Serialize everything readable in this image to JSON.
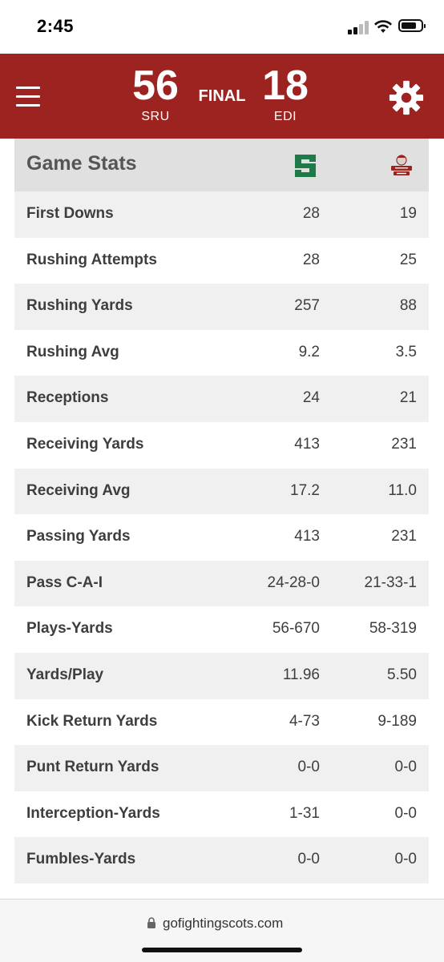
{
  "status_bar": {
    "time": "2:45"
  },
  "header": {
    "home_score": "56",
    "home_abbr": "SRU",
    "status": "FINAL",
    "away_score": "18",
    "away_abbr": "EDI"
  },
  "stats": {
    "title": "Game Stats",
    "home_logo_letter": "S",
    "away_logo_text": "FIGHTING SCOTS",
    "rows": [
      {
        "label": "First Downs",
        "home": "28",
        "away": "19"
      },
      {
        "label": "Rushing Attempts",
        "home": "28",
        "away": "25"
      },
      {
        "label": "Rushing Yards",
        "home": "257",
        "away": "88"
      },
      {
        "label": "Rushing Avg",
        "home": "9.2",
        "away": "3.5"
      },
      {
        "label": "Receptions",
        "home": "24",
        "away": "21"
      },
      {
        "label": "Receiving Yards",
        "home": "413",
        "away": "231"
      },
      {
        "label": "Receiving Avg",
        "home": "17.2",
        "away": "11.0"
      },
      {
        "label": "Passing Yards",
        "home": "413",
        "away": "231"
      },
      {
        "label": "Pass C-A-I",
        "home": "24-28-0",
        "away": "21-33-1"
      },
      {
        "label": "Plays-Yards",
        "home": "56-670",
        "away": "58-319"
      },
      {
        "label": "Yards/Play",
        "home": "11.96",
        "away": "5.50"
      },
      {
        "label": "Kick Return Yards",
        "home": "4-73",
        "away": "9-189"
      },
      {
        "label": "Punt Return Yards",
        "home": "0-0",
        "away": "0-0"
      },
      {
        "label": "Interception-Yards",
        "home": "1-31",
        "away": "0-0"
      },
      {
        "label": "Fumbles-Yards",
        "home": "0-0",
        "away": "0-0"
      }
    ]
  },
  "browser": {
    "url": "gofightingscots.com"
  },
  "colors": {
    "header_bg": "#9c2320",
    "home_green": "#1f7a4a"
  },
  "icons": [
    "menu-icon",
    "gear-icon",
    "lock-icon",
    "signal-icon",
    "wifi-icon",
    "battery-icon"
  ]
}
